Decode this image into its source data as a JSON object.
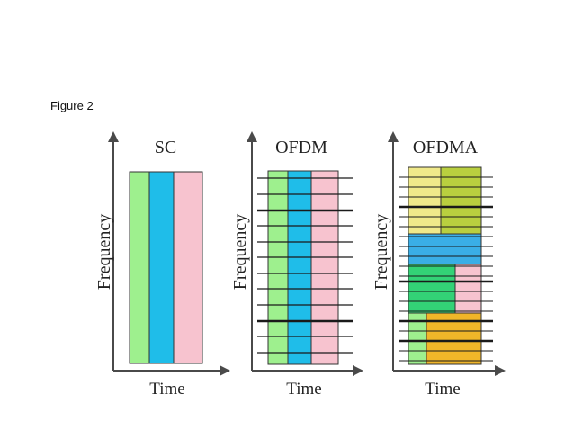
{
  "caption": "Figure 2",
  "colors": {
    "green": "#9ef08e",
    "cyan": "#1fbde9",
    "pink": "#f7c3cf",
    "yellow": "#f0e98a",
    "olive": "#b9cf3f",
    "blue": "#3aaee6",
    "teal_green": "#33d276",
    "orange": "#f1b629",
    "line": "#1a1a1a",
    "axis": "#4a4a4a"
  },
  "panels": [
    {
      "title": "SC",
      "xlabel": "Time",
      "ylabel": "Frequency"
    },
    {
      "title": "OFDM",
      "xlabel": "Time",
      "ylabel": "Frequency"
    },
    {
      "title": "OFDMA",
      "xlabel": "Time",
      "ylabel": "Frequency"
    }
  ]
}
